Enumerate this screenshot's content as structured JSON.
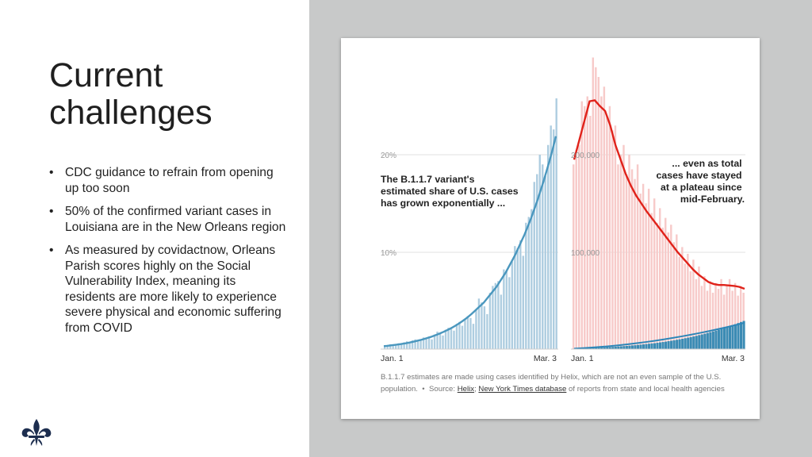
{
  "slide": {
    "title": "Current challenges",
    "bullets": [
      "CDC guidance to refrain from opening up too soon",
      "50% of the confirmed variant cases in Louisiana are in the New Orleans region",
      "As measured by covidactnow, Orleans Parish scores highly on the Social Vulnerability Index, meaning its residents are more likely to experience severe physical and economic suffering from COVID"
    ],
    "logo_icon": "fleur-de-lis-icon"
  },
  "colors": {
    "left_bar": "#aecde0",
    "left_line": "#4a97be",
    "right_bar": "#f7cac9",
    "right_line": "#e0221a",
    "right_bottom_bar": "#3b8bb4",
    "right_bottom_line": "#2e86b8",
    "right_pane_bg": "#c8c9c9"
  },
  "chart_data": [
    {
      "type": "bar",
      "title": "The B.1.1.7 variant's estimated share of U.S. cases has grown exponentially ...",
      "x_start_label": "Jan. 1",
      "x_end_label": "Mar. 3",
      "ylim": [
        0,
        25
      ],
      "yticks": [
        {
          "value": 10,
          "label": "10%"
        },
        {
          "value": 20,
          "label": "20%"
        }
      ],
      "bar_values": [
        0.3,
        0.4,
        0.5,
        0.4,
        0.5,
        0.6,
        0.5,
        0.7,
        0.8,
        0.6,
        0.9,
        1.0,
        0.8,
        0.9,
        1.2,
        1.1,
        1.3,
        1.0,
        1.5,
        1.8,
        1.6,
        1.4,
        2.0,
        2.2,
        2.1,
        1.9,
        2.6,
        2.8,
        2.4,
        3.0,
        3.4,
        3.2,
        2.6,
        4.0,
        5.2,
        4.8,
        4.4,
        3.6,
        5.8,
        6.5,
        6.8,
        7.0,
        5.6,
        8.2,
        8.0,
        7.4,
        9.0,
        10.6,
        10.4,
        11.2,
        9.6,
        13.0,
        13.6,
        14.4,
        17.2,
        18.0,
        20.0,
        19.0,
        17.8,
        21.0,
        23.0,
        22.6,
        25.8
      ],
      "trend_values": [
        0.3,
        0.33,
        0.37,
        0.41,
        0.45,
        0.5,
        0.55,
        0.6,
        0.66,
        0.73,
        0.8,
        0.88,
        0.96,
        1.05,
        1.15,
        1.25,
        1.37,
        1.49,
        1.62,
        1.76,
        1.91,
        2.07,
        2.24,
        2.43,
        2.63,
        2.85,
        3.08,
        3.33,
        3.6,
        3.9,
        4.2,
        4.5,
        4.8,
        5.2,
        5.6,
        6.0,
        6.4,
        6.9,
        7.4,
        7.9,
        8.5,
        9.1,
        9.7,
        10.4,
        11.1,
        11.8,
        12.6,
        13.4,
        14.3,
        15.2,
        16.2,
        17.2,
        18.3,
        19.4,
        20.6,
        21.9
      ]
    },
    {
      "type": "bar",
      "title": "... even as total cases have stayed at a plateau since mid-February.",
      "x_start_label": "Jan. 1",
      "x_end_label": "Mar. 3",
      "ylim": [
        0,
        250000
      ],
      "yticks": [
        {
          "value": 100000,
          "label": "100,000"
        },
        {
          "value": 200000,
          "label": "200,000"
        }
      ],
      "bar_values": [
        190000,
        205000,
        210000,
        255000,
        250000,
        260000,
        240000,
        300000,
        290000,
        280000,
        260000,
        270000,
        240000,
        250000,
        225000,
        230000,
        190000,
        200000,
        210000,
        180000,
        200000,
        185000,
        175000,
        190000,
        160000,
        170000,
        150000,
        165000,
        140000,
        155000,
        130000,
        145000,
        125000,
        135000,
        120000,
        128000,
        110000,
        118000,
        95000,
        105000,
        88000,
        98000,
        80000,
        92000,
        72000,
        85000,
        65000,
        75000,
        60000,
        70000,
        58000,
        68000,
        62000,
        72000,
        56000,
        66000,
        72000,
        60000,
        68000,
        55000,
        65000,
        58000
      ],
      "trend_values": [
        195000,
        215000,
        235000,
        255000,
        256000,
        250000,
        245000,
        230000,
        210000,
        195000,
        180000,
        168000,
        158000,
        150000,
        142000,
        135000,
        128000,
        121000,
        114000,
        107000,
        100000,
        94000,
        88000,
        82000,
        77000,
        73000,
        69000,
        67000,
        66000,
        66000,
        65500,
        65000,
        64000,
        62000
      ],
      "variant_bar_values": [
        500,
        600,
        700,
        800,
        900,
        1000,
        1100,
        1200,
        1300,
        1500,
        1600,
        1800,
        2000,
        2100,
        2300,
        2500,
        2700,
        2900,
        3100,
        3300,
        3500,
        3800,
        4000,
        4300,
        4600,
        4900,
        5200,
        5500,
        5800,
        6100,
        6500,
        6900,
        7300,
        7700,
        8200,
        8600,
        9100,
        9600,
        10100,
        10600,
        11200,
        11800,
        12400,
        13000,
        13700,
        14400,
        15100,
        15800,
        16600,
        17400,
        18200,
        19000,
        19900,
        20800,
        21700,
        22700,
        23700,
        24700,
        25700,
        26800,
        27900,
        29000
      ],
      "variant_trend_values": [
        500,
        1000,
        1600,
        2300,
        3100,
        4000,
        5000,
        6100,
        7300,
        8600,
        10000,
        11500,
        13100,
        14800,
        16600,
        18500,
        20500,
        22600,
        24800,
        27100
      ]
    }
  ],
  "caption": {
    "line1": "B.1.1.7 estimates are made using cases identified by Helix, which are not an even sample of the U.S.",
    "line2_prefix": "population.",
    "dot": "•",
    "source_label": "Source:",
    "helix_link": "Helix",
    "separator": ";",
    "nyt_link": "New York Times database",
    "suffix": "of reports from state and local health agencies"
  }
}
